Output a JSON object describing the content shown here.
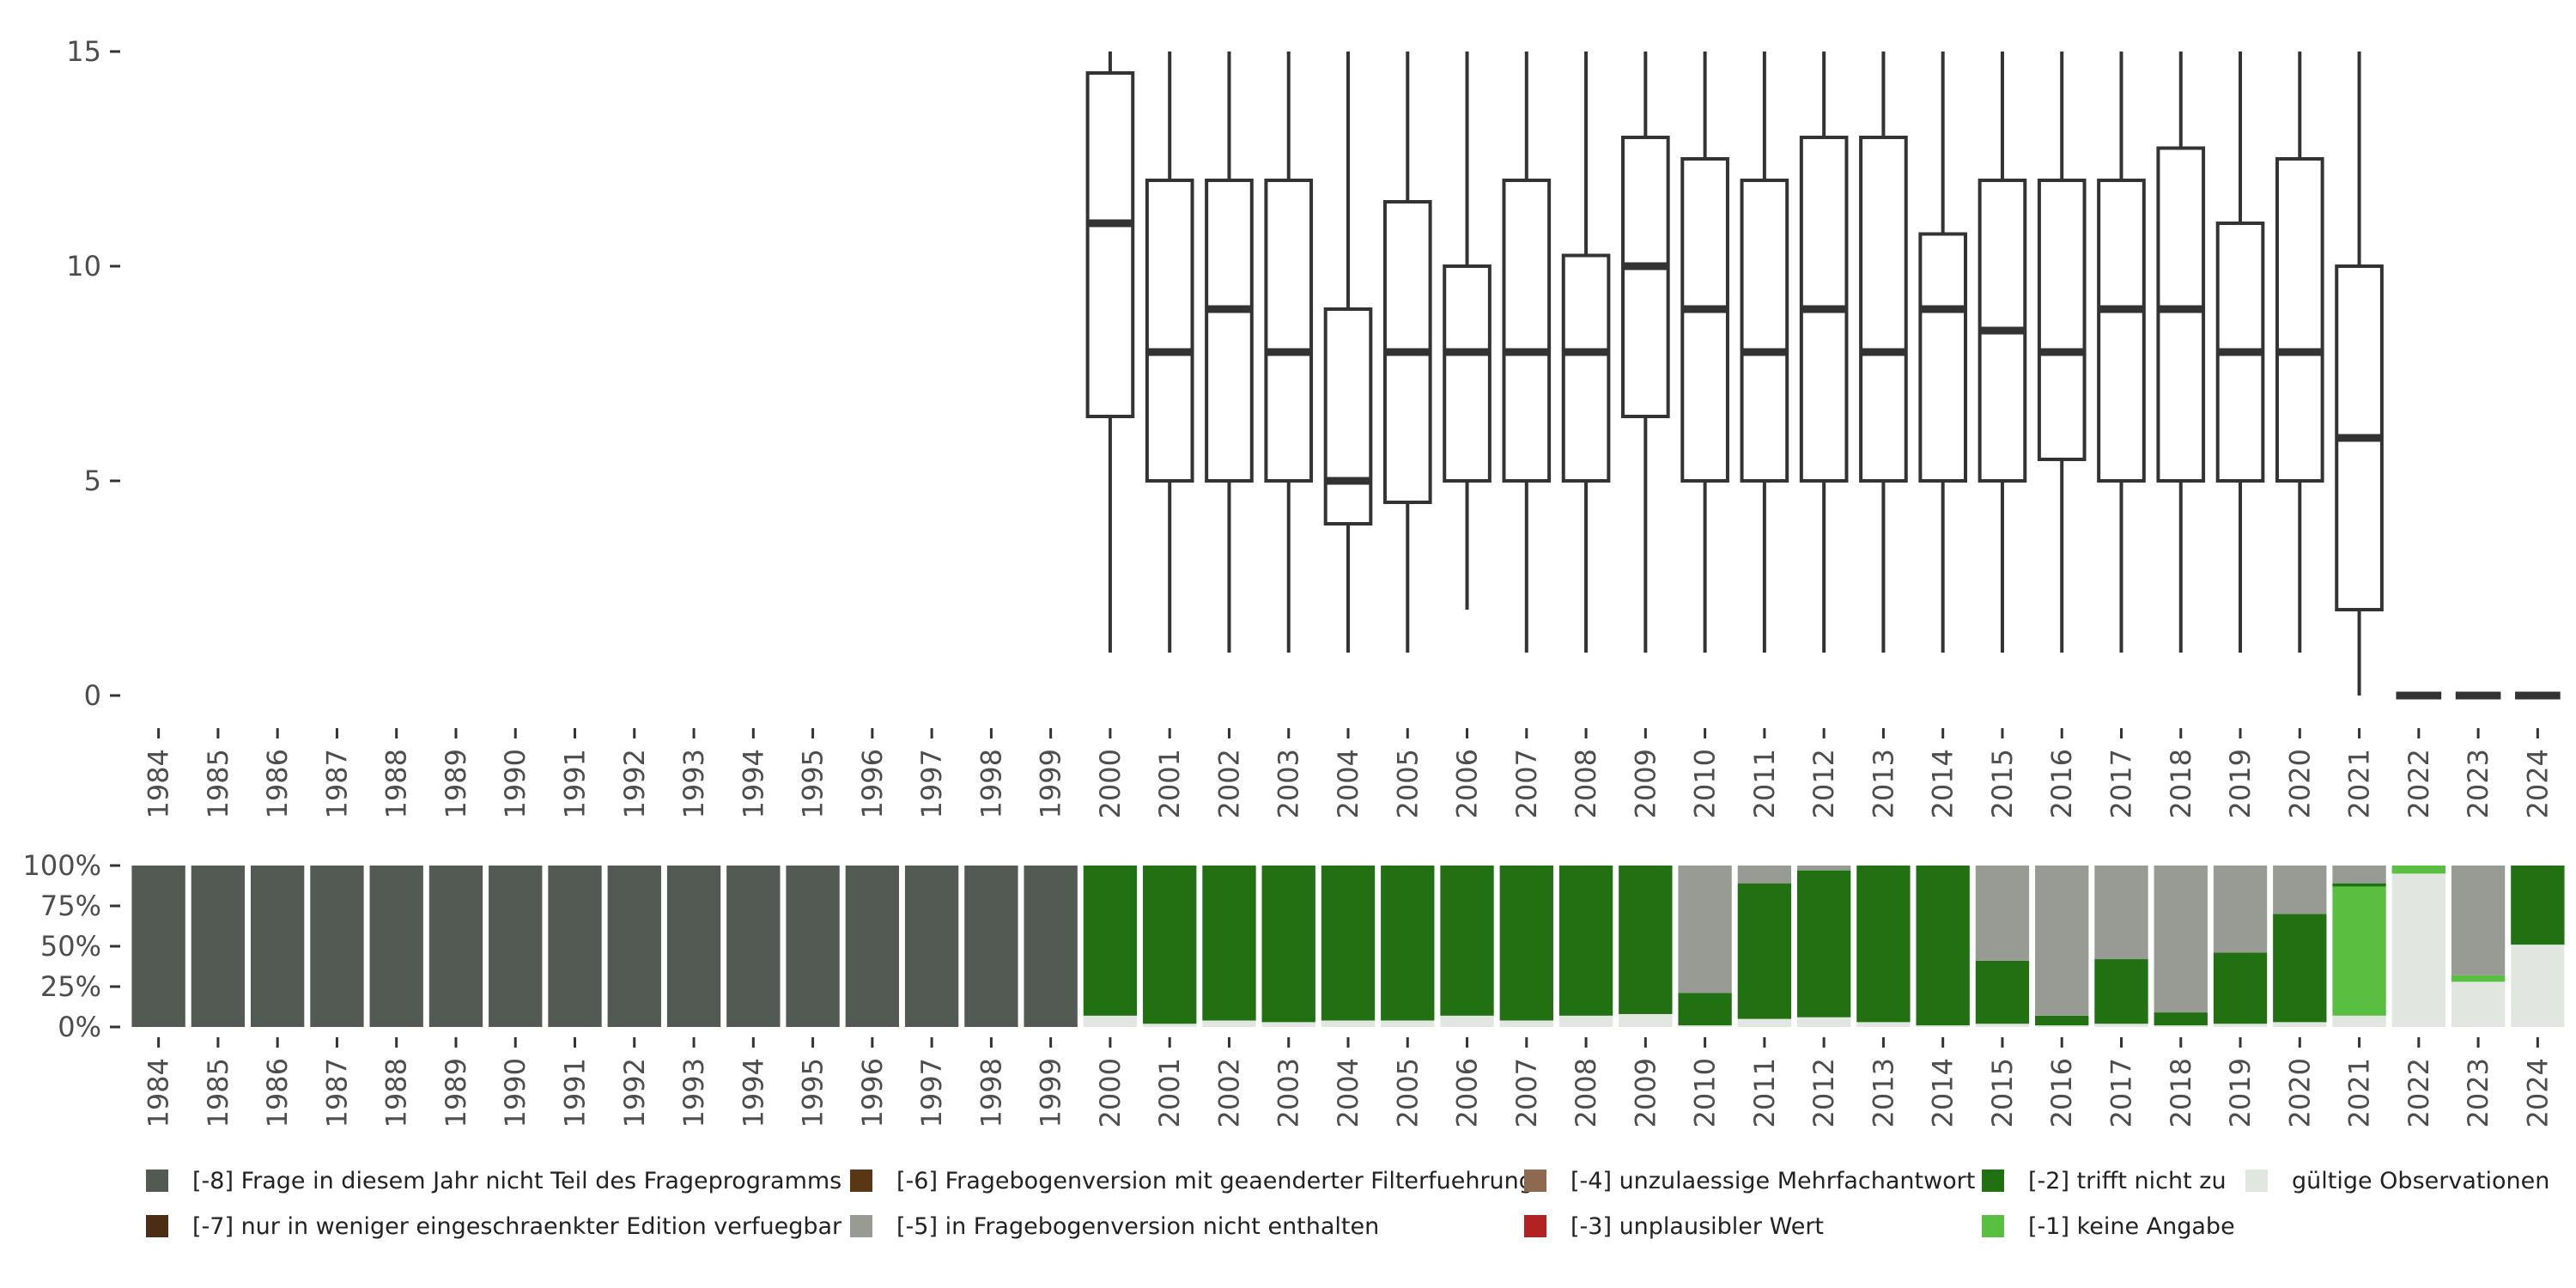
{
  "chart_data": [
    {
      "type": "box",
      "title": "",
      "xlabel": "",
      "ylabel": "",
      "ylim": [
        0,
        15
      ],
      "yticks": [
        0,
        5,
        10,
        15
      ],
      "categories": [
        "1984",
        "1985",
        "1986",
        "1987",
        "1988",
        "1989",
        "1990",
        "1991",
        "1992",
        "1993",
        "1994",
        "1995",
        "1996",
        "1997",
        "1998",
        "1999",
        "2000",
        "2001",
        "2002",
        "2003",
        "2004",
        "2005",
        "2006",
        "2007",
        "2008",
        "2009",
        "2010",
        "2011",
        "2012",
        "2013",
        "2014",
        "2015",
        "2016",
        "2017",
        "2018",
        "2019",
        "2020",
        "2021",
        "2022",
        "2023",
        "2024"
      ],
      "boxes": [
        {
          "year": "2000",
          "min": 1,
          "q1": 6.5,
          "median": 11,
          "q3": 14.5,
          "max": 15
        },
        {
          "year": "2001",
          "min": 1,
          "q1": 5,
          "median": 8,
          "q3": 12,
          "max": 15
        },
        {
          "year": "2002",
          "min": 1,
          "q1": 5,
          "median": 9,
          "q3": 12,
          "max": 15
        },
        {
          "year": "2003",
          "min": 1,
          "q1": 5,
          "median": 8,
          "q3": 12,
          "max": 15
        },
        {
          "year": "2004",
          "min": 1,
          "q1": 4,
          "median": 5,
          "q3": 9,
          "max": 15
        },
        {
          "year": "2005",
          "min": 1,
          "q1": 4.5,
          "median": 8,
          "q3": 11.5,
          "max": 15
        },
        {
          "year": "2006",
          "min": 2,
          "q1": 5,
          "median": 8,
          "q3": 10,
          "max": 15
        },
        {
          "year": "2007",
          "min": 1,
          "q1": 5,
          "median": 8,
          "q3": 12,
          "max": 15
        },
        {
          "year": "2008",
          "min": 1,
          "q1": 5,
          "median": 8,
          "q3": 10.25,
          "max": 15
        },
        {
          "year": "2009",
          "min": 1,
          "q1": 6.5,
          "median": 10,
          "q3": 13,
          "max": 15
        },
        {
          "year": "2010",
          "min": 1,
          "q1": 5,
          "median": 9,
          "q3": 12.5,
          "max": 15
        },
        {
          "year": "2011",
          "min": 1,
          "q1": 5,
          "median": 8,
          "q3": 12,
          "max": 15
        },
        {
          "year": "2012",
          "min": 1,
          "q1": 5,
          "median": 9,
          "q3": 13,
          "max": 15
        },
        {
          "year": "2013",
          "min": 1,
          "q1": 5,
          "median": 8,
          "q3": 13,
          "max": 15
        },
        {
          "year": "2014",
          "min": 1,
          "q1": 5,
          "median": 9,
          "q3": 10.75,
          "max": 15
        },
        {
          "year": "2015",
          "min": 1,
          "q1": 5,
          "median": 8.5,
          "q3": 12,
          "max": 15
        },
        {
          "year": "2016",
          "min": 1,
          "q1": 5.5,
          "median": 8,
          "q3": 12,
          "max": 15
        },
        {
          "year": "2017",
          "min": 1,
          "q1": 5,
          "median": 9,
          "q3": 12,
          "max": 15
        },
        {
          "year": "2018",
          "min": 1,
          "q1": 5,
          "median": 9,
          "q3": 12.75,
          "max": 15
        },
        {
          "year": "2019",
          "min": 1,
          "q1": 5,
          "median": 8,
          "q3": 11,
          "max": 15
        },
        {
          "year": "2020",
          "min": 1,
          "q1": 5,
          "median": 8,
          "q3": 12.5,
          "max": 15
        },
        {
          "year": "2021",
          "min": 0,
          "q1": 2,
          "median": 6,
          "q3": 10,
          "max": 15
        },
        {
          "year": "2022",
          "min": 0,
          "q1": 0,
          "median": 0,
          "q3": 0,
          "max": 0
        },
        {
          "year": "2023",
          "min": 0,
          "q1": 0,
          "median": 0,
          "q3": 0,
          "max": 0
        },
        {
          "year": "2024",
          "min": 0,
          "q1": 0,
          "median": 0,
          "q3": 0,
          "max": 0
        }
      ]
    },
    {
      "type": "stacked_bar",
      "ylim": [
        0,
        100
      ],
      "yticks": [
        0,
        25,
        50,
        75,
        100
      ],
      "ytick_labels": [
        "0%",
        "25%",
        "50%",
        "75%",
        "100%"
      ],
      "stack_order": [
        "valid",
        "m1",
        "m2",
        "m3",
        "m4",
        "m5",
        "m6",
        "m7",
        "m8"
      ],
      "bars": [
        {
          "year": "1984",
          "m8": 100
        },
        {
          "year": "1985",
          "m8": 100
        },
        {
          "year": "1986",
          "m8": 100
        },
        {
          "year": "1987",
          "m8": 100
        },
        {
          "year": "1988",
          "m8": 100
        },
        {
          "year": "1989",
          "m8": 100
        },
        {
          "year": "1990",
          "m8": 100
        },
        {
          "year": "1991",
          "m8": 100
        },
        {
          "year": "1992",
          "m8": 100
        },
        {
          "year": "1993",
          "m8": 100
        },
        {
          "year": "1994",
          "m8": 100
        },
        {
          "year": "1995",
          "m8": 100
        },
        {
          "year": "1996",
          "m8": 100
        },
        {
          "year": "1997",
          "m8": 100
        },
        {
          "year": "1998",
          "m8": 100
        },
        {
          "year": "1999",
          "m8": 100
        },
        {
          "year": "2000",
          "valid": 7,
          "m2": 93
        },
        {
          "year": "2001",
          "valid": 2,
          "m2": 98
        },
        {
          "year": "2002",
          "valid": 4,
          "m2": 96
        },
        {
          "year": "2003",
          "valid": 3,
          "m2": 97
        },
        {
          "year": "2004",
          "valid": 4,
          "m2": 96
        },
        {
          "year": "2005",
          "valid": 4,
          "m2": 96
        },
        {
          "year": "2006",
          "valid": 7,
          "m2": 93
        },
        {
          "year": "2007",
          "valid": 4,
          "m2": 96
        },
        {
          "year": "2008",
          "valid": 7,
          "m2": 93
        },
        {
          "year": "2009",
          "valid": 8,
          "m2": 92
        },
        {
          "year": "2010",
          "valid": 1,
          "m2": 20,
          "m5": 79
        },
        {
          "year": "2011",
          "valid": 5,
          "m2": 84,
          "m5": 11
        },
        {
          "year": "2012",
          "valid": 6,
          "m2": 91,
          "m5": 3
        },
        {
          "year": "2013",
          "valid": 3,
          "m2": 97
        },
        {
          "year": "2014",
          "valid": 1,
          "m2": 99
        },
        {
          "year": "2015",
          "valid": 2,
          "m2": 39,
          "m5": 59
        },
        {
          "year": "2016",
          "valid": 1,
          "m2": 6,
          "m5": 93
        },
        {
          "year": "2017",
          "valid": 2,
          "m2": 40,
          "m5": 58
        },
        {
          "year": "2018",
          "valid": 1,
          "m2": 8,
          "m5": 91
        },
        {
          "year": "2019",
          "valid": 2,
          "m2": 44,
          "m5": 54
        },
        {
          "year": "2020",
          "valid": 3,
          "m2": 67,
          "m5": 30
        },
        {
          "year": "2021",
          "valid": 7,
          "m1": 80,
          "m2": 2,
          "m5": 11
        },
        {
          "year": "2022",
          "valid": 95,
          "m1": 5
        },
        {
          "year": "2023",
          "valid": 28,
          "m1": 4,
          "m5": 68
        },
        {
          "year": "2024",
          "valid": 51,
          "m2": 49
        }
      ]
    }
  ],
  "colors": {
    "m8": "#535a53",
    "m7": "#4a2d14",
    "m6": "#5a3714",
    "m5": "#979b94",
    "m4": "#8d6a4f",
    "m3": "#b22222",
    "m2": "#217012",
    "m1": "#59bf41",
    "valid": "#e2e6e1",
    "box_line": "#333333",
    "axis_text": "#4d4d4d"
  },
  "legend": [
    {
      "key": "m8",
      "label": "[-8] Frage in diesem Jahr nicht Teil des Frageprogramms"
    },
    {
      "key": "m7",
      "label": "[-7] nur in weniger eingeschraenkter Edition verfuegbar"
    },
    {
      "key": "m6",
      "label": "[-6] Fragebogenversion mit geaenderter Filterfuehrung"
    },
    {
      "key": "m5",
      "label": "[-5] in Fragebogenversion nicht enthalten"
    },
    {
      "key": "m4",
      "label": "[-4] unzulaessige Mehrfachantwort"
    },
    {
      "key": "m3",
      "label": "[-3] unplausibler Wert"
    },
    {
      "key": "m2",
      "label": "[-2] trifft nicht zu"
    },
    {
      "key": "m1",
      "label": "[-1] keine Angabe"
    },
    {
      "key": "valid",
      "label": "gültige Observationen"
    }
  ]
}
